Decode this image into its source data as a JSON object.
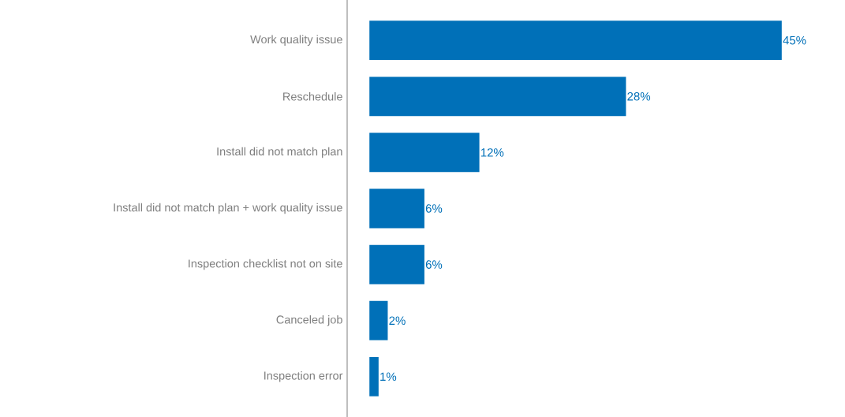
{
  "chart_data": {
    "type": "bar",
    "orientation": "horizontal",
    "categories": [
      "Work quality issue",
      "Reschedule",
      "Install did not match plan",
      "Install did not match plan + work quality issue",
      "Inspection checklist not on site",
      "Canceled job",
      "Inspection error"
    ],
    "values": [
      45,
      28,
      12,
      6,
      6,
      2,
      1
    ],
    "value_labels": [
      "45%",
      "28%",
      "12%",
      "6%",
      "6%",
      "2%",
      "1%"
    ],
    "color": "#0070b8"
  }
}
